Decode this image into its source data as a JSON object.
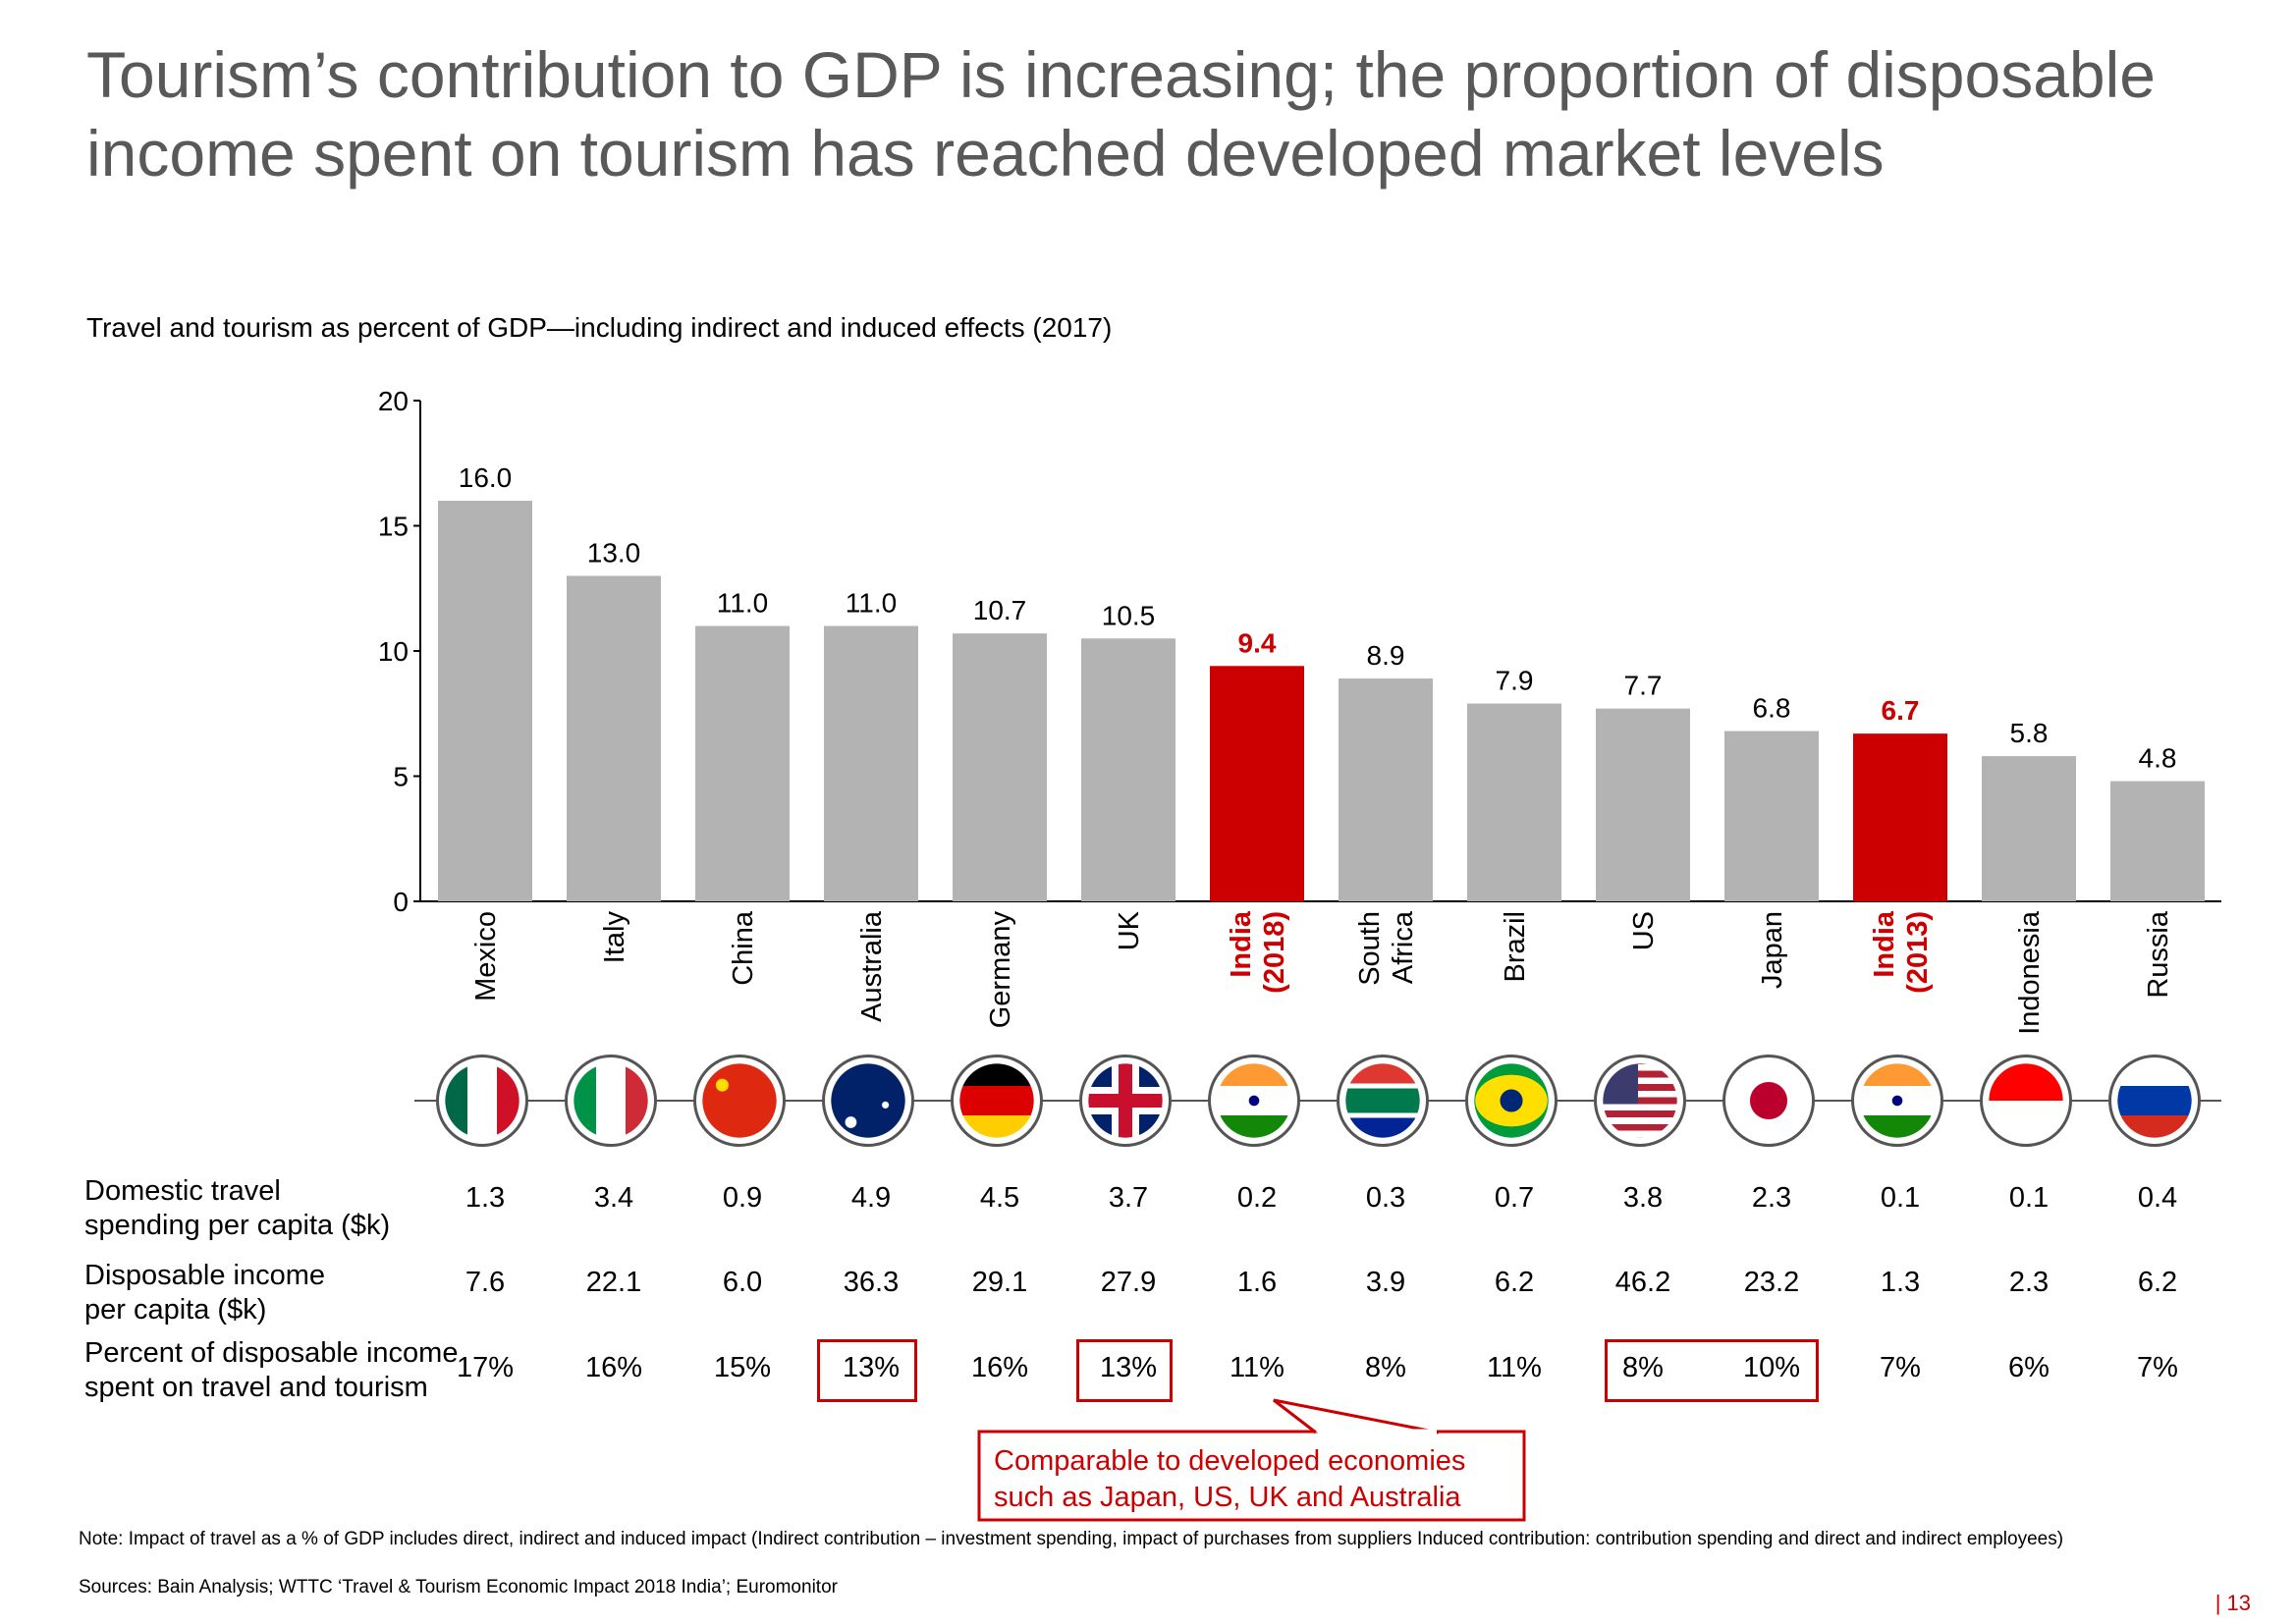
{
  "title": "Tourism’s contribution to GDP is increasing; the proportion of disposable income spent on tourism has reached developed market levels",
  "colors": {
    "highlight": "#cc0000",
    "bar": "#b3b3b3",
    "title": "#595959"
  },
  "chart_data": {
    "type": "bar",
    "title": "Travel and tourism as percent of GDP—including indirect and induced effects (2017)",
    "categories": [
      {
        "lines": [
          "Mexico"
        ],
        "highlight": false
      },
      {
        "lines": [
          "Italy"
        ],
        "highlight": false
      },
      {
        "lines": [
          "China"
        ],
        "highlight": false
      },
      {
        "lines": [
          "Australia"
        ],
        "highlight": false
      },
      {
        "lines": [
          "Germany"
        ],
        "highlight": false
      },
      {
        "lines": [
          "UK"
        ],
        "highlight": false
      },
      {
        "lines": [
          "India",
          "(2018)"
        ],
        "highlight": true
      },
      {
        "lines": [
          "South",
          "Africa"
        ],
        "highlight": false
      },
      {
        "lines": [
          "Brazil"
        ],
        "highlight": false
      },
      {
        "lines": [
          "US"
        ],
        "highlight": false
      },
      {
        "lines": [
          "Japan"
        ],
        "highlight": false
      },
      {
        "lines": [
          "India",
          "(2013)"
        ],
        "highlight": true
      },
      {
        "lines": [
          "Indonesia"
        ],
        "highlight": false
      },
      {
        "lines": [
          "Russia"
        ],
        "highlight": false
      }
    ],
    "values": [
      16.0,
      13.0,
      11.0,
      11.0,
      10.7,
      10.5,
      9.4,
      8.9,
      7.9,
      7.7,
      6.8,
      6.7,
      5.8,
      4.8
    ],
    "value_labels": [
      "16.0",
      "13.0",
      "11.0",
      "11.0",
      "10.7",
      "10.5",
      "9.4",
      "8.9",
      "7.9",
      "7.7",
      "6.8",
      "6.7",
      "5.8",
      "4.8"
    ],
    "ylim": [
      0,
      20
    ],
    "yticks": [
      "0",
      "5",
      "10",
      "15",
      "20"
    ],
    "grid": false
  },
  "flags": [
    "mexico-flag-icon",
    "italy-flag-icon",
    "china-flag-icon",
    "australia-flag-icon",
    "germany-flag-icon",
    "uk-flag-icon",
    "india-flag-icon",
    "south-africa-flag-icon",
    "brazil-flag-icon",
    "us-flag-icon",
    "japan-flag-icon",
    "india-flag-icon",
    "indonesia-flag-icon",
    "russia-flag-icon"
  ],
  "table": {
    "rows": [
      {
        "label_lines": [
          "Domestic travel",
          "spending per capita ($k)"
        ],
        "values": [
          "1.3",
          "3.4",
          "0.9",
          "4.9",
          "4.5",
          "3.7",
          "0.2",
          "0.3",
          "0.7",
          "3.8",
          "2.3",
          "0.1",
          "0.1",
          "0.4"
        ]
      },
      {
        "label_lines": [
          "Disposable income",
          "per capita ($k)"
        ],
        "values": [
          "7.6",
          "22.1",
          "6.0",
          "36.3",
          "29.1",
          "27.9",
          "1.6",
          "3.9",
          "6.2",
          "46.2",
          "23.2",
          "1.3",
          "2.3",
          "6.2"
        ]
      },
      {
        "label_lines": [
          "Percent of disposable income",
          "spent on travel and tourism"
        ],
        "values": [
          "17%",
          "16%",
          "15%",
          "13%",
          "16%",
          "13%",
          "11%",
          "8%",
          "11%",
          "8%",
          "10%",
          "7%",
          "6%",
          "7%"
        ]
      }
    ]
  },
  "callout": {
    "lines": [
      "Comparable to developed economies",
      "such as Japan, US, UK and Australia"
    ]
  },
  "footer": {
    "note": "Note: Impact of travel as a % of GDP includes direct, indirect and induced impact (Indirect contribution – investment spending, impact of purchases from suppliers Induced contribution: contribution spending and direct and indirect employees)",
    "sources": "Sources: Bain Analysis; WTTC ‘Travel & Tourism Economic Impact 2018 India’; Euromonitor",
    "page": "| 13"
  }
}
